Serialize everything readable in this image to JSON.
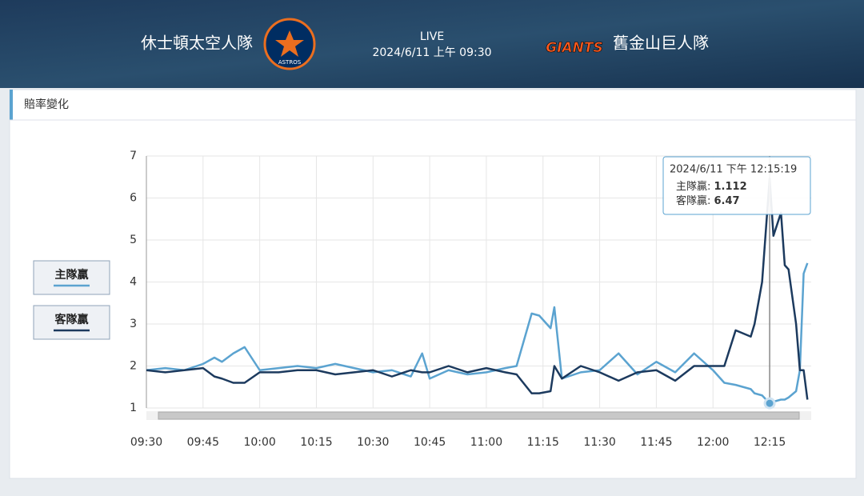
{
  "header": {
    "home_team": "休士頓太空人隊",
    "away_team": "舊金山巨人隊",
    "status": "LIVE",
    "datetime": "2024/6/11 上午 09:30",
    "home_logo": "ASTROS",
    "away_logo": "GIANTS"
  },
  "panel_title": "賠率變化",
  "tooltip": {
    "time": "2024/6/11 下午 12:15:19",
    "rows": [
      {
        "label": "主隊贏: ",
        "value": "1.112"
      },
      {
        "label": "客隊贏: ",
        "value": "6.47"
      }
    ]
  },
  "chart_data": {
    "type": "line",
    "x": [
      "09:30",
      "09:35",
      "09:40",
      "09:45",
      "09:48",
      "09:50",
      "09:53",
      "09:56",
      "10:00",
      "10:05",
      "10:10",
      "10:15",
      "10:20",
      "10:25",
      "10:30",
      "10:35",
      "10:40",
      "10:43",
      "10:45",
      "10:50",
      "10:55",
      "11:00",
      "11:05",
      "11:08",
      "11:12",
      "11:14",
      "11:17",
      "11:18",
      "11:20",
      "11:25",
      "11:30",
      "11:35",
      "11:40",
      "11:45",
      "11:50",
      "11:55",
      "12:00",
      "12:03",
      "12:06",
      "12:10",
      "12:11",
      "12:13",
      "12:15",
      "12:16",
      "12:18",
      "12:19",
      "12:20",
      "12:22",
      "12:23",
      "12:24",
      "12:25"
    ],
    "series": [
      {
        "name": "主隊贏",
        "color": "#5ba3d0",
        "values": [
          1.9,
          1.95,
          1.9,
          2.05,
          2.2,
          2.1,
          2.3,
          2.45,
          1.9,
          1.95,
          2.0,
          1.95,
          2.05,
          1.95,
          1.85,
          1.9,
          1.75,
          2.3,
          1.7,
          1.9,
          1.8,
          1.85,
          1.95,
          2.0,
          3.25,
          3.2,
          2.9,
          3.4,
          1.7,
          1.85,
          1.9,
          2.3,
          1.8,
          2.1,
          1.85,
          2.3,
          1.9,
          1.6,
          1.55,
          1.45,
          1.35,
          1.3,
          1.112,
          1.15,
          1.2,
          1.2,
          1.25,
          1.4,
          1.9,
          4.2,
          4.45
        ]
      },
      {
        "name": "客隊贏",
        "color": "#1c3a5e",
        "values": [
          1.9,
          1.85,
          1.9,
          1.95,
          1.75,
          1.7,
          1.6,
          1.6,
          1.85,
          1.85,
          1.9,
          1.9,
          1.8,
          1.85,
          1.9,
          1.75,
          1.9,
          1.85,
          1.85,
          2.0,
          1.85,
          1.95,
          1.85,
          1.8,
          1.35,
          1.35,
          1.4,
          2.0,
          1.7,
          2.0,
          1.85,
          1.65,
          1.85,
          1.9,
          1.65,
          2.0,
          2.0,
          2.0,
          2.85,
          2.7,
          3.0,
          4.0,
          6.47,
          5.1,
          5.65,
          4.4,
          4.3,
          3.0,
          1.9,
          1.9,
          1.2
        ]
      }
    ],
    "xlim": [
      "09:30",
      "12:26"
    ],
    "xticks": [
      "09:30",
      "09:45",
      "10:00",
      "10:15",
      "10:30",
      "10:45",
      "11:00",
      "11:15",
      "11:30",
      "11:45",
      "12:00",
      "12:15"
    ],
    "ylim": [
      1,
      7
    ],
    "yticks": [
      1,
      2,
      3,
      4,
      5,
      6,
      7
    ],
    "grid": true
  }
}
